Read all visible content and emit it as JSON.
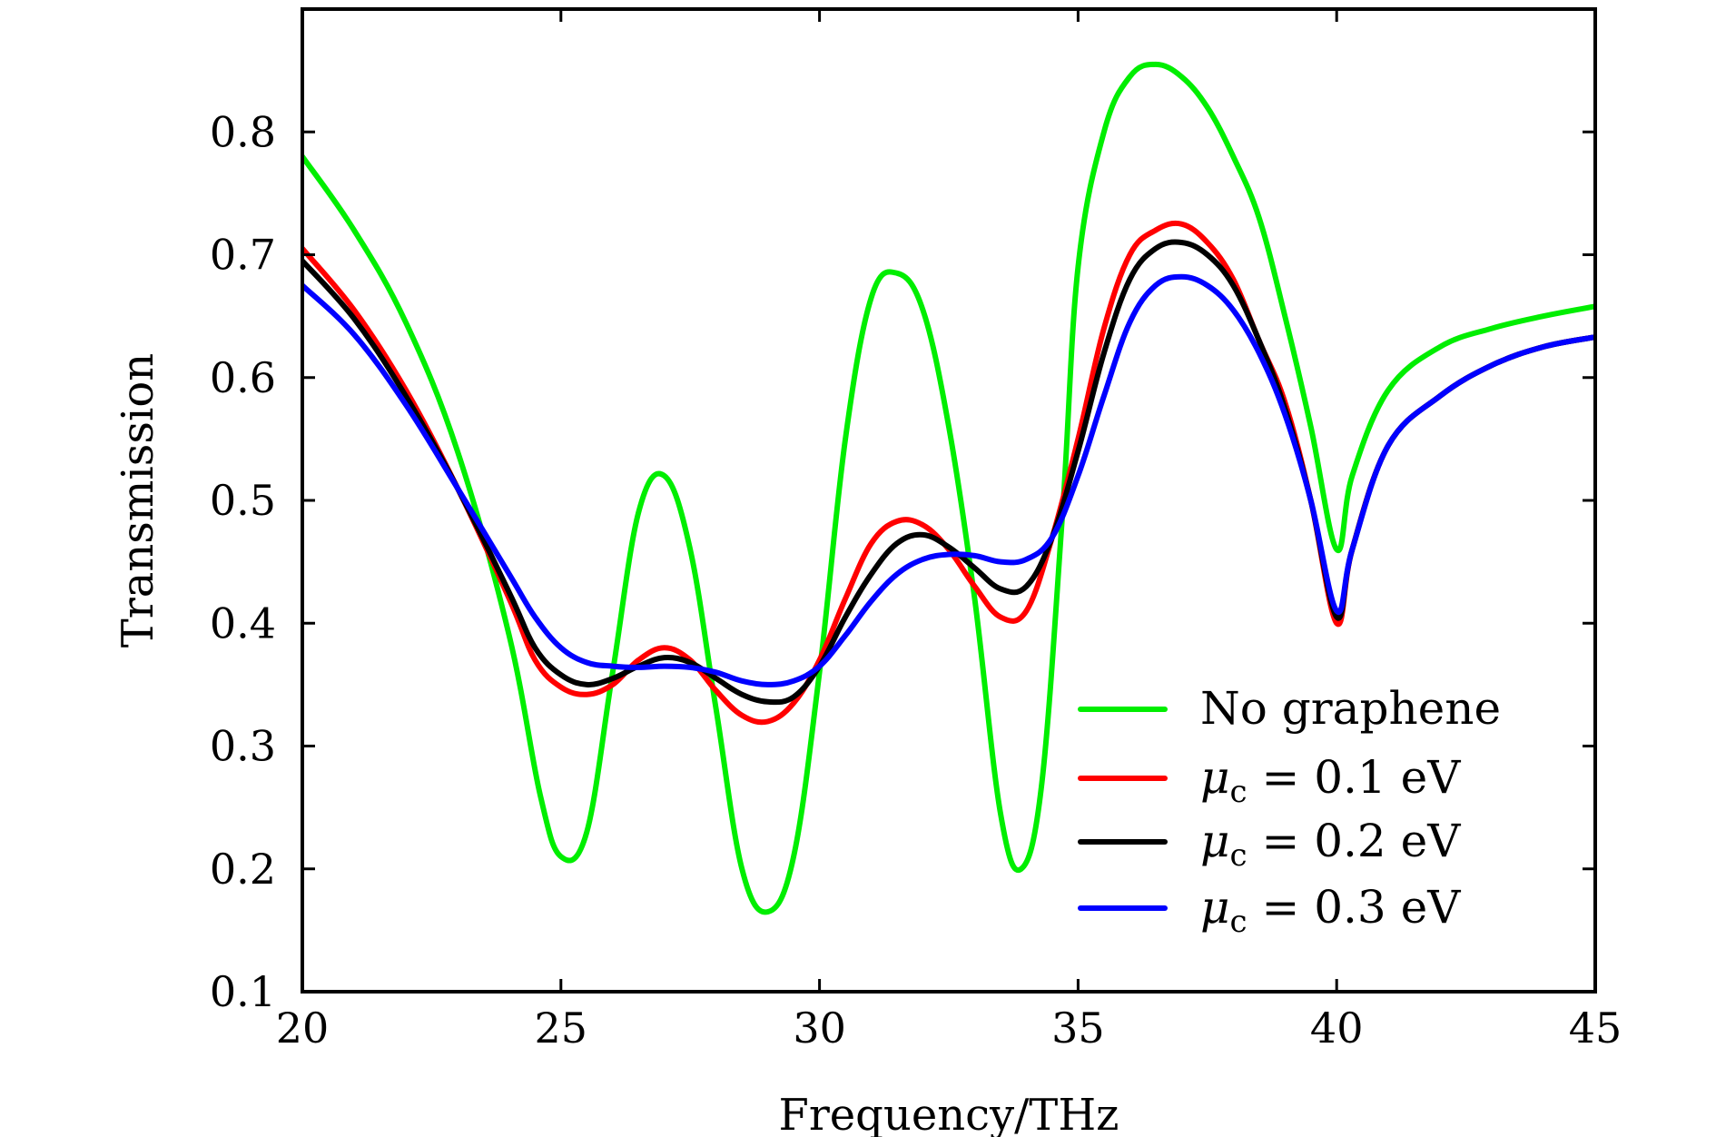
{
  "chart_data": {
    "type": "line",
    "title": "",
    "xlabel": "Frequency/THz",
    "ylabel": "Transmission",
    "xlim": [
      20,
      45
    ],
    "ylim": [
      0.1,
      0.9
    ],
    "grid": false,
    "legend_position": "bottom-right",
    "x_ticks": [
      20,
      25,
      30,
      35,
      40,
      45
    ],
    "x_tick_labels": [
      "20",
      "25",
      "30",
      "35",
      "40",
      "45"
    ],
    "y_ticks": [
      0.1,
      0.2,
      0.3,
      0.4,
      0.5,
      0.6,
      0.7,
      0.8
    ],
    "y_tick_labels": [
      "0.1",
      "0.2",
      "0.3",
      "0.4",
      "0.5",
      "0.6",
      "0.7",
      "0.8"
    ],
    "series": [
      {
        "name": "No graphene",
        "legend_symbol": "",
        "legend_subscript": "",
        "legend_value": "No graphene",
        "color": "#00ee00",
        "points": [
          [
            20,
            0.78
          ],
          [
            21,
            0.72
          ],
          [
            22,
            0.645
          ],
          [
            23,
            0.54
          ],
          [
            24,
            0.39
          ],
          [
            24.6,
            0.26
          ],
          [
            25.0,
            0.21
          ],
          [
            25.5,
            0.23
          ],
          [
            26.0,
            0.36
          ],
          [
            26.5,
            0.49
          ],
          [
            27.0,
            0.52
          ],
          [
            27.5,
            0.46
          ],
          [
            28.0,
            0.33
          ],
          [
            28.5,
            0.2
          ],
          [
            29.0,
            0.165
          ],
          [
            29.5,
            0.21
          ],
          [
            30.0,
            0.36
          ],
          [
            30.5,
            0.55
          ],
          [
            31.0,
            0.665
          ],
          [
            31.5,
            0.685
          ],
          [
            32.0,
            0.655
          ],
          [
            32.5,
            0.56
          ],
          [
            33.0,
            0.42
          ],
          [
            33.5,
            0.245
          ],
          [
            33.9,
            0.2
          ],
          [
            34.3,
            0.27
          ],
          [
            34.7,
            0.49
          ],
          [
            35.0,
            0.69
          ],
          [
            35.5,
            0.8
          ],
          [
            36.0,
            0.845
          ],
          [
            36.5,
            0.855
          ],
          [
            37.0,
            0.845
          ],
          [
            37.5,
            0.82
          ],
          [
            38.0,
            0.78
          ],
          [
            38.5,
            0.73
          ],
          [
            39.0,
            0.65
          ],
          [
            39.5,
            0.56
          ],
          [
            40.0,
            0.46
          ],
          [
            40.3,
            0.52
          ],
          [
            41.0,
            0.59
          ],
          [
            42.0,
            0.625
          ],
          [
            43.0,
            0.64
          ],
          [
            44.0,
            0.65
          ],
          [
            45.0,
            0.658
          ]
        ]
      },
      {
        "name": "mu_c = 0.1 eV",
        "legend_symbol": "μ",
        "legend_subscript": "c",
        "legend_value": " = 0.1 eV",
        "color": "#ff0000",
        "points": [
          [
            20,
            0.705
          ],
          [
            21,
            0.655
          ],
          [
            22,
            0.59
          ],
          [
            23,
            0.51
          ],
          [
            24,
            0.42
          ],
          [
            24.5,
            0.37
          ],
          [
            25.0,
            0.348
          ],
          [
            25.5,
            0.342
          ],
          [
            26.0,
            0.35
          ],
          [
            26.5,
            0.37
          ],
          [
            27.0,
            0.38
          ],
          [
            27.5,
            0.37
          ],
          [
            28.0,
            0.345
          ],
          [
            28.5,
            0.325
          ],
          [
            29.0,
            0.32
          ],
          [
            29.5,
            0.335
          ],
          [
            30.0,
            0.37
          ],
          [
            30.5,
            0.42
          ],
          [
            31.0,
            0.465
          ],
          [
            31.5,
            0.483
          ],
          [
            32.0,
            0.48
          ],
          [
            32.5,
            0.46
          ],
          [
            33.0,
            0.43
          ],
          [
            33.5,
            0.405
          ],
          [
            34.0,
            0.41
          ],
          [
            34.5,
            0.47
          ],
          [
            35.0,
            0.55
          ],
          [
            35.5,
            0.64
          ],
          [
            36.0,
            0.7
          ],
          [
            36.5,
            0.72
          ],
          [
            37.0,
            0.725
          ],
          [
            37.5,
            0.71
          ],
          [
            38.0,
            0.68
          ],
          [
            38.5,
            0.63
          ],
          [
            39.0,
            0.58
          ],
          [
            39.5,
            0.5
          ],
          [
            40.0,
            0.4
          ],
          [
            40.3,
            0.46
          ],
          [
            41.0,
            0.545
          ],
          [
            42.0,
            0.585
          ],
          [
            43.0,
            0.61
          ],
          [
            44.0,
            0.625
          ],
          [
            45.0,
            0.633
          ]
        ]
      },
      {
        "name": "mu_c = 0.2 eV",
        "legend_symbol": "μ",
        "legend_subscript": "c",
        "legend_value": " = 0.2 eV",
        "color": "#000000",
        "points": [
          [
            20,
            0.695
          ],
          [
            21,
            0.648
          ],
          [
            22,
            0.585
          ],
          [
            23,
            0.51
          ],
          [
            24,
            0.425
          ],
          [
            24.5,
            0.38
          ],
          [
            25.0,
            0.358
          ],
          [
            25.5,
            0.35
          ],
          [
            26.0,
            0.355
          ],
          [
            26.5,
            0.365
          ],
          [
            27.0,
            0.372
          ],
          [
            27.5,
            0.368
          ],
          [
            28.0,
            0.355
          ],
          [
            28.5,
            0.342
          ],
          [
            29.0,
            0.336
          ],
          [
            29.5,
            0.34
          ],
          [
            30.0,
            0.365
          ],
          [
            30.5,
            0.405
          ],
          [
            31.0,
            0.44
          ],
          [
            31.5,
            0.465
          ],
          [
            32.0,
            0.472
          ],
          [
            32.5,
            0.462
          ],
          [
            33.0,
            0.445
          ],
          [
            33.5,
            0.428
          ],
          [
            34.0,
            0.43
          ],
          [
            34.5,
            0.47
          ],
          [
            35.0,
            0.54
          ],
          [
            35.5,
            0.62
          ],
          [
            36.0,
            0.68
          ],
          [
            36.5,
            0.705
          ],
          [
            37.0,
            0.71
          ],
          [
            37.5,
            0.7
          ],
          [
            38.0,
            0.675
          ],
          [
            38.5,
            0.63
          ],
          [
            39.0,
            0.575
          ],
          [
            39.5,
            0.5
          ],
          [
            40.0,
            0.405
          ],
          [
            40.3,
            0.46
          ],
          [
            41.0,
            0.545
          ],
          [
            42.0,
            0.585
          ],
          [
            43.0,
            0.61
          ],
          [
            44.0,
            0.625
          ],
          [
            45.0,
            0.633
          ]
        ]
      },
      {
        "name": "mu_c = 0.3 eV",
        "legend_symbol": "μ",
        "legend_subscript": "c",
        "legend_value": " = 0.3 eV",
        "color": "#0000ff",
        "points": [
          [
            20,
            0.675
          ],
          [
            21,
            0.635
          ],
          [
            22,
            0.578
          ],
          [
            23,
            0.51
          ],
          [
            24,
            0.44
          ],
          [
            24.5,
            0.405
          ],
          [
            25.0,
            0.38
          ],
          [
            25.5,
            0.368
          ],
          [
            26.0,
            0.365
          ],
          [
            26.5,
            0.364
          ],
          [
            27.0,
            0.365
          ],
          [
            27.5,
            0.364
          ],
          [
            28.0,
            0.36
          ],
          [
            28.5,
            0.353
          ],
          [
            29.0,
            0.35
          ],
          [
            29.5,
            0.353
          ],
          [
            30.0,
            0.365
          ],
          [
            30.5,
            0.39
          ],
          [
            31.0,
            0.418
          ],
          [
            31.5,
            0.44
          ],
          [
            32.0,
            0.452
          ],
          [
            32.5,
            0.456
          ],
          [
            33.0,
            0.455
          ],
          [
            33.5,
            0.45
          ],
          [
            34.0,
            0.452
          ],
          [
            34.5,
            0.47
          ],
          [
            35.0,
            0.52
          ],
          [
            35.5,
            0.585
          ],
          [
            36.0,
            0.645
          ],
          [
            36.5,
            0.675
          ],
          [
            37.0,
            0.682
          ],
          [
            37.5,
            0.675
          ],
          [
            38.0,
            0.655
          ],
          [
            38.5,
            0.62
          ],
          [
            39.0,
            0.57
          ],
          [
            39.5,
            0.5
          ],
          [
            40.0,
            0.41
          ],
          [
            40.3,
            0.46
          ],
          [
            41.0,
            0.545
          ],
          [
            42.0,
            0.585
          ],
          [
            43.0,
            0.61
          ],
          [
            44.0,
            0.625
          ],
          [
            45.0,
            0.633
          ]
        ]
      }
    ]
  }
}
